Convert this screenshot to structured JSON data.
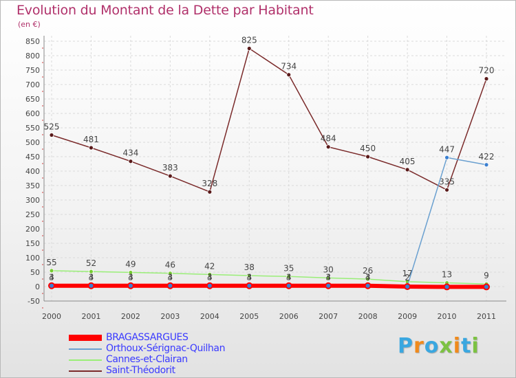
{
  "header": {
    "title": "Evolution du Montant de la Dette par Habitant",
    "subtitle": "(en €)"
  },
  "brand": {
    "text": "Proxiti"
  },
  "chart_data": {
    "type": "line",
    "title": "Evolution du Montant de la Dette par Habitant",
    "subtitle": "(en €)",
    "xlabel": "",
    "ylabel": "",
    "categories": [
      "2000",
      "2001",
      "2002",
      "2003",
      "2004",
      "2005",
      "2006",
      "2007",
      "2008",
      "2009",
      "2010",
      "2011"
    ],
    "ylim": [
      -50,
      850
    ],
    "yticks": [
      -50,
      0,
      50,
      100,
      150,
      200,
      250,
      300,
      350,
      400,
      450,
      500,
      550,
      600,
      650,
      700,
      750,
      800,
      850
    ],
    "grid": true,
    "legend_position": "bottom-left",
    "series": [
      {
        "name": "BRAGASSARGUES",
        "color": "#ff0000",
        "values": [
          3,
          3,
          3,
          3,
          3,
          3,
          3,
          3,
          3,
          0,
          -1,
          -1
        ],
        "labels": [
          "3",
          "3",
          "3",
          "3",
          "3",
          "3",
          "3",
          "3",
          "3",
          "",
          "",
          ""
        ]
      },
      {
        "name": "Orthoux-Sérignac-Quilhan",
        "color": "#6aa0d0",
        "values": [
          4,
          4,
          4,
          4,
          4,
          4,
          4,
          4,
          4,
          2,
          447,
          422
        ],
        "labels": [
          "4",
          "4",
          "4",
          "4",
          "4",
          "4",
          "4",
          "4",
          "4",
          "2",
          "447",
          "422"
        ]
      },
      {
        "name": "Cannes-et-Clairan",
        "color": "#99ee77",
        "values": [
          55,
          52,
          49,
          46,
          42,
          38,
          35,
          30,
          26,
          17,
          13,
          9
        ],
        "labels": [
          "55",
          "52",
          "49",
          "46",
          "42",
          "38",
          "35",
          "30",
          "26",
          "17",
          "13",
          "9"
        ]
      },
      {
        "name": "Saint-Théodorit",
        "color": "#7a2a2a",
        "values": [
          525,
          481,
          434,
          383,
          328,
          825,
          734,
          484,
          450,
          405,
          335,
          720
        ],
        "labels": [
          "525",
          "481",
          "434",
          "383",
          "328",
          "825",
          "734",
          "484",
          "450",
          "405",
          "335",
          "720"
        ]
      }
    ]
  }
}
